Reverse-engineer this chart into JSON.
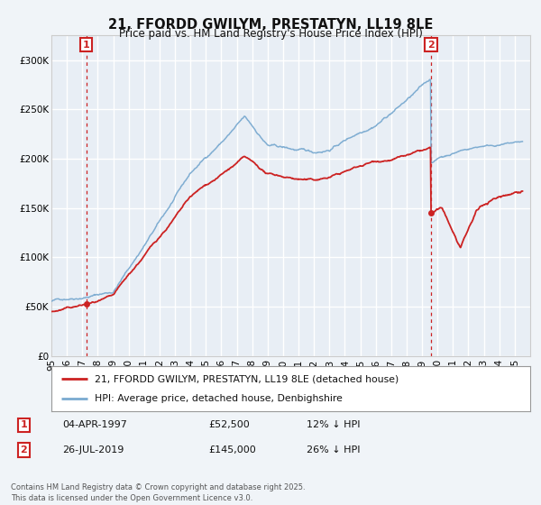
{
  "title": "21, FFORDD GWILYM, PRESTATYN, LL19 8LE",
  "subtitle": "Price paid vs. HM Land Registry's House Price Index (HPI)",
  "bg_color": "#f0f4f8",
  "plot_bg_color": "#e8eef5",
  "grid_color": "#ffffff",
  "hpi_line_color": "#7aaad0",
  "price_line_color": "#cc2222",
  "vline_color": "#cc2222",
  "sale1_date_num": 1997.26,
  "sale1_price": 52500,
  "sale1_label": "1",
  "sale2_date_num": 2019.57,
  "sale2_price": 145000,
  "sale2_label": "2",
  "xmin": 1995,
  "xmax": 2026,
  "ymin": 0,
  "ymax": 325000,
  "yticks": [
    0,
    50000,
    100000,
    150000,
    200000,
    250000,
    300000
  ],
  "ytick_labels": [
    "£0",
    "£50K",
    "£100K",
    "£150K",
    "£200K",
    "£250K",
    "£300K"
  ],
  "xticks": [
    1995,
    1996,
    1997,
    1998,
    1999,
    2000,
    2001,
    2002,
    2003,
    2004,
    2005,
    2006,
    2007,
    2008,
    2009,
    2010,
    2011,
    2012,
    2013,
    2014,
    2015,
    2016,
    2017,
    2018,
    2019,
    2020,
    2021,
    2022,
    2023,
    2024,
    2025
  ],
  "legend_label1": "21, FFORDD GWILYM, PRESTATYN, LL19 8LE (detached house)",
  "legend_label2": "HPI: Average price, detached house, Denbighshire",
  "footer": "Contains HM Land Registry data © Crown copyright and database right 2025.\nThis data is licensed under the Open Government Licence v3.0."
}
